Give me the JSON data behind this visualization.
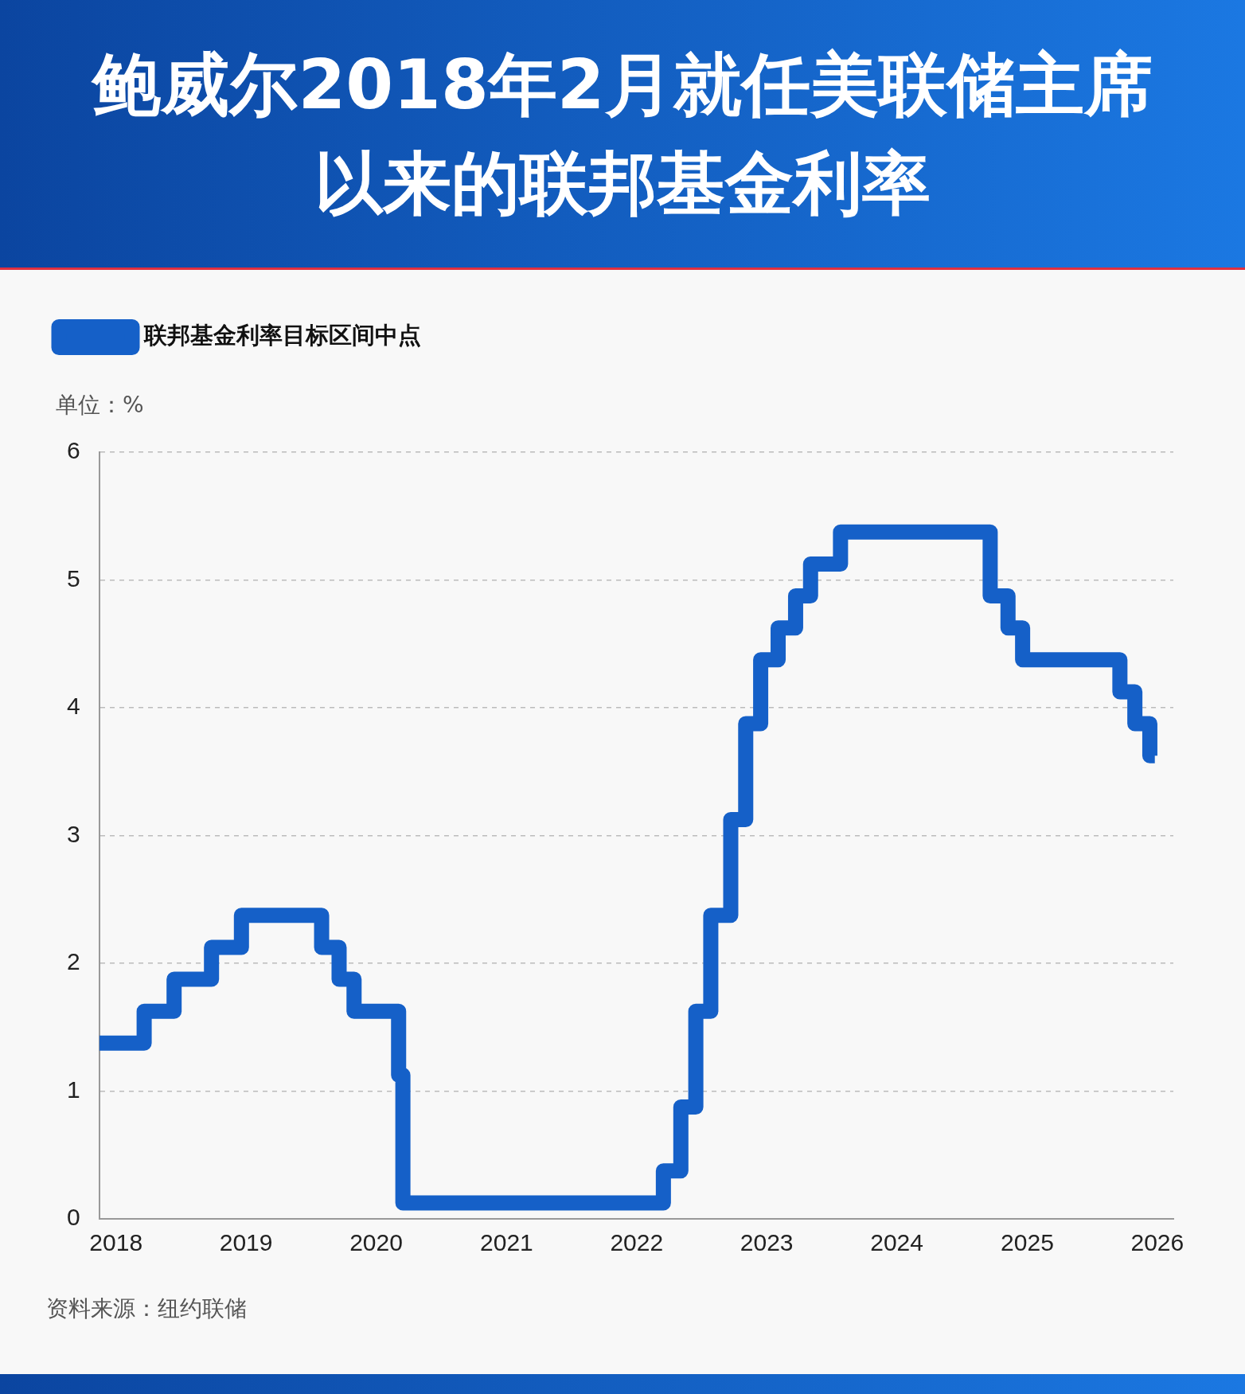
{
  "chart_data": {
    "type": "step",
    "title": "鲍威尔2018年2月就任美联储主席以来的联邦基金利率",
    "ylabel": "单位：%",
    "annotations": [
      "资料来源：纽约联储"
    ],
    "x": [
      "2017-11-15",
      "2018-03-21",
      "2018-06-13",
      "2018-09-26",
      "2018-12-19",
      "2019-08-01",
      "2019-09-19",
      "2019-10-31",
      "2020-03-04",
      "2020-03-16",
      "2022-03-17",
      "2022-05-05",
      "2022-06-16",
      "2022-07-28",
      "2022-09-22",
      "2022-11-03",
      "2022-12-15",
      "2023-02-02",
      "2023-03-23",
      "2023-05-04",
      "2023-07-27",
      "2024-09-19",
      "2024-11-08",
      "2024-12-19",
      "2025-09-18",
      "2025-10-30",
      "2025-12-11",
      "2025-12-25"
    ],
    "series": [
      {
        "name": "联邦基金利率目标区间中点",
        "color": "#1560c8",
        "values": [
          1.375,
          1.625,
          1.875,
          2.125,
          2.375,
          2.125,
          1.875,
          1.625,
          1.125,
          0.125,
          0.375,
          0.875,
          1.625,
          2.375,
          3.125,
          3.875,
          4.375,
          4.625,
          4.875,
          5.125,
          5.375,
          4.875,
          4.625,
          4.375,
          4.125,
          3.875,
          3.625,
          3.625
        ]
      }
    ],
    "xlim": [
      "2017-11-15",
      "2026-02-15"
    ],
    "xticks": [
      "2018",
      "2019",
      "2020",
      "2021",
      "2022",
      "2023",
      "2024",
      "2025",
      "2026"
    ],
    "ylim": [
      0,
      6
    ],
    "yticks": [
      0,
      1,
      2,
      3,
      4,
      5,
      6
    ],
    "grid": "y",
    "legend": "top left",
    "marker": "none",
    "line_style": "solid"
  }
}
